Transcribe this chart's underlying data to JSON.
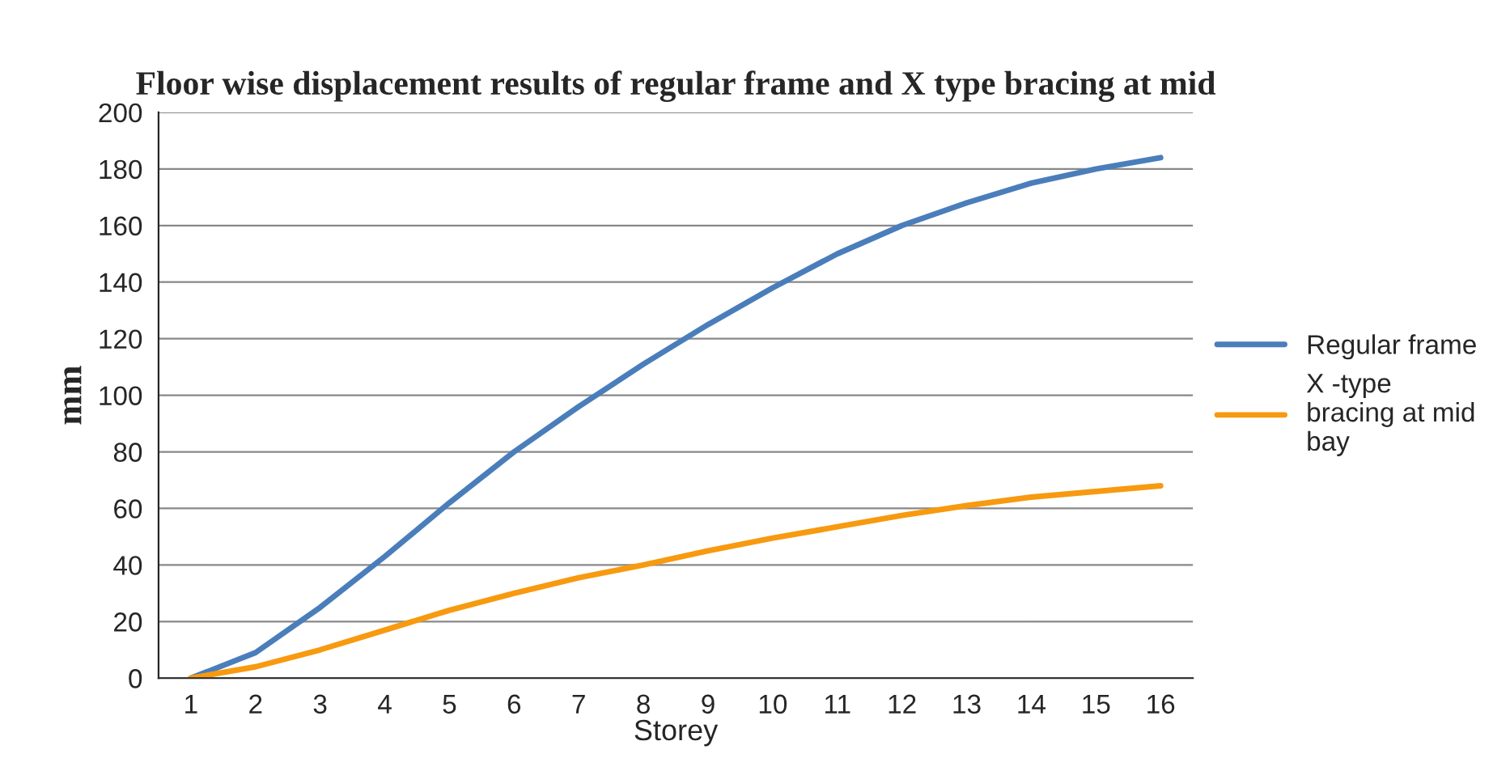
{
  "chart_data": {
    "type": "line",
    "title": "Floor wise displacement results of regular frame and X type bracing at mid",
    "xlabel": "Storey",
    "ylabel": "mm",
    "categories": [
      "1",
      "2",
      "3",
      "4",
      "5",
      "6",
      "7",
      "8",
      "9",
      "10",
      "11",
      "12",
      "13",
      "14",
      "15",
      "16"
    ],
    "series": [
      {
        "name": "Regular frame",
        "color": "#4a7ebb",
        "values": [
          0,
          9,
          25,
          43,
          62,
          80,
          96,
          111,
          125,
          138,
          150,
          160,
          168,
          175,
          180,
          184
        ]
      },
      {
        "name": "X -type bracing at mid bay",
        "color": "#f79a0f",
        "values": [
          0,
          4,
          10,
          17,
          24,
          30,
          35.5,
          40,
          45,
          49.5,
          53.5,
          57.5,
          61,
          64,
          66,
          68
        ]
      }
    ],
    "ylim": [
      0,
      200
    ],
    "yticks": [
      0,
      20,
      40,
      60,
      80,
      100,
      120,
      140,
      160,
      180,
      200
    ],
    "grid": "y",
    "legend": "right",
    "marker": "none"
  }
}
